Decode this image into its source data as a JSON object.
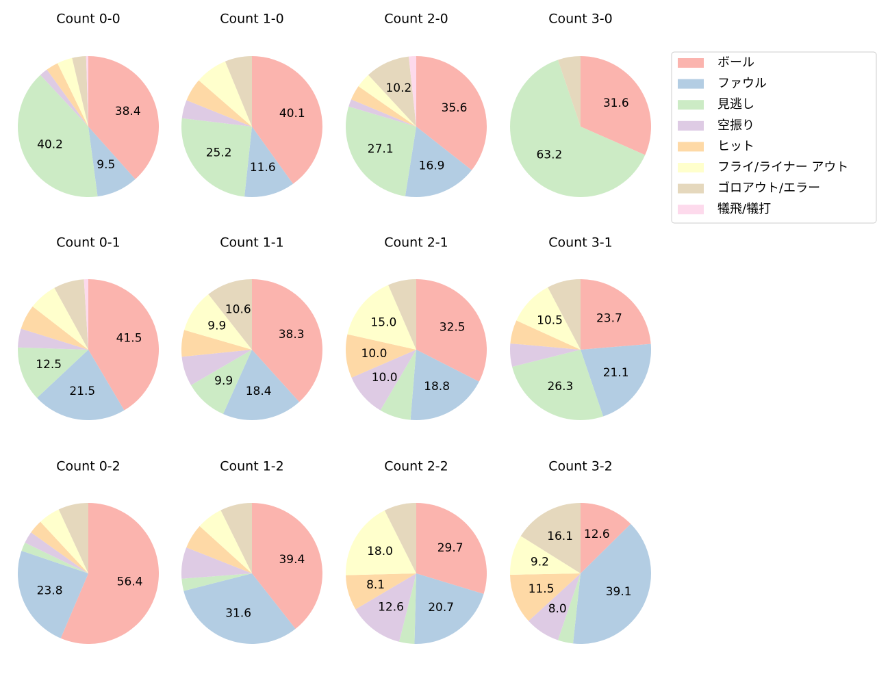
{
  "legend": {
    "labels": [
      "ボール",
      "ファウル",
      "見逃し",
      "空振り",
      "ヒット",
      "フライ/ライナー アウト",
      "ゴロアウト/エラー",
      "犠飛/犠打"
    ],
    "colors": [
      "#fbb4ae",
      "#b3cde3",
      "#ccebc5",
      "#decbe4",
      "#fed9a6",
      "#ffffcc",
      "#e5d8bd",
      "#fddaec"
    ]
  },
  "chart_data": [
    {
      "type": "pie",
      "title": "Count 0-0",
      "values": [
        38.4,
        9.5,
        40.2,
        1.9,
        2.8,
        3.5,
        3.2,
        0.5
      ],
      "value_labels": [
        "38.4",
        "9.5",
        "40.2",
        null,
        null,
        null,
        null,
        null
      ]
    },
    {
      "type": "pie",
      "title": "Count 1-0",
      "values": [
        40.1,
        11.6,
        25.2,
        4.2,
        5.3,
        7.4,
        6.2,
        0
      ],
      "value_labels": [
        "40.1",
        "11.6",
        "25.2",
        null,
        null,
        null,
        null,
        null
      ]
    },
    {
      "type": "pie",
      "title": "Count 2-0",
      "values": [
        35.6,
        16.9,
        27.1,
        1.7,
        3.4,
        3.4,
        10.2,
        1.7
      ],
      "value_labels": [
        "35.6",
        "16.9",
        "27.1",
        null,
        null,
        null,
        "10.2",
        null
      ]
    },
    {
      "type": "pie",
      "title": "Count 3-0",
      "values": [
        31.6,
        0,
        63.2,
        0,
        0,
        0,
        5.2,
        0
      ],
      "value_labels": [
        "31.6",
        null,
        "63.2",
        null,
        null,
        null,
        null,
        null
      ]
    },
    {
      "type": "pie",
      "title": "Count 0-1",
      "values": [
        41.5,
        21.5,
        12.5,
        4.3,
        5.7,
        6.5,
        7.0,
        1.0
      ],
      "value_labels": [
        "41.5",
        "21.5",
        "12.5",
        null,
        null,
        null,
        null,
        null
      ]
    },
    {
      "type": "pie",
      "title": "Count 1-1",
      "values": [
        38.3,
        18.4,
        9.9,
        6.8,
        6.1,
        9.9,
        10.6,
        0
      ],
      "value_labels": [
        "38.3",
        "18.4",
        "9.9",
        null,
        null,
        "9.9",
        "10.6",
        null
      ]
    },
    {
      "type": "pie",
      "title": "Count 2-1",
      "values": [
        32.5,
        18.8,
        7.2,
        10.0,
        10.0,
        15.0,
        6.5,
        0
      ],
      "value_labels": [
        "32.5",
        "18.8",
        null,
        "10.0",
        "10.0",
        "15.0",
        null,
        null
      ]
    },
    {
      "type": "pie",
      "title": "Count 3-1",
      "values": [
        23.7,
        21.1,
        26.3,
        5.3,
        5.4,
        10.5,
        7.7,
        0
      ],
      "value_labels": [
        "23.7",
        "21.1",
        "26.3",
        null,
        null,
        "10.5",
        null,
        null
      ]
    },
    {
      "type": "pie",
      "title": "Count 0-2",
      "values": [
        56.4,
        23.8,
        2.0,
        2.7,
        3.2,
        5.0,
        6.9,
        0
      ],
      "value_labels": [
        "56.4",
        "23.8",
        null,
        null,
        null,
        null,
        null,
        null
      ]
    },
    {
      "type": "pie",
      "title": "Count 1-2",
      "values": [
        39.4,
        31.6,
        2.8,
        7.2,
        5.7,
        6.0,
        7.3,
        0
      ],
      "value_labels": [
        "39.4",
        "31.6",
        null,
        null,
        null,
        null,
        null,
        null
      ]
    },
    {
      "type": "pie",
      "title": "Count 2-2",
      "values": [
        29.7,
        20.7,
        3.5,
        12.6,
        8.1,
        18.0,
        7.4,
        0
      ],
      "value_labels": [
        "29.7",
        "20.7",
        null,
        "12.6",
        "8.1",
        "18.0",
        null,
        null
      ]
    },
    {
      "type": "pie",
      "title": "Count 3-2",
      "values": [
        12.6,
        39.1,
        3.5,
        8.0,
        11.5,
        9.2,
        16.1,
        0
      ],
      "value_labels": [
        "12.6",
        "39.1",
        null,
        "8.0",
        "11.5",
        "9.2",
        "16.1",
        null
      ]
    }
  ]
}
